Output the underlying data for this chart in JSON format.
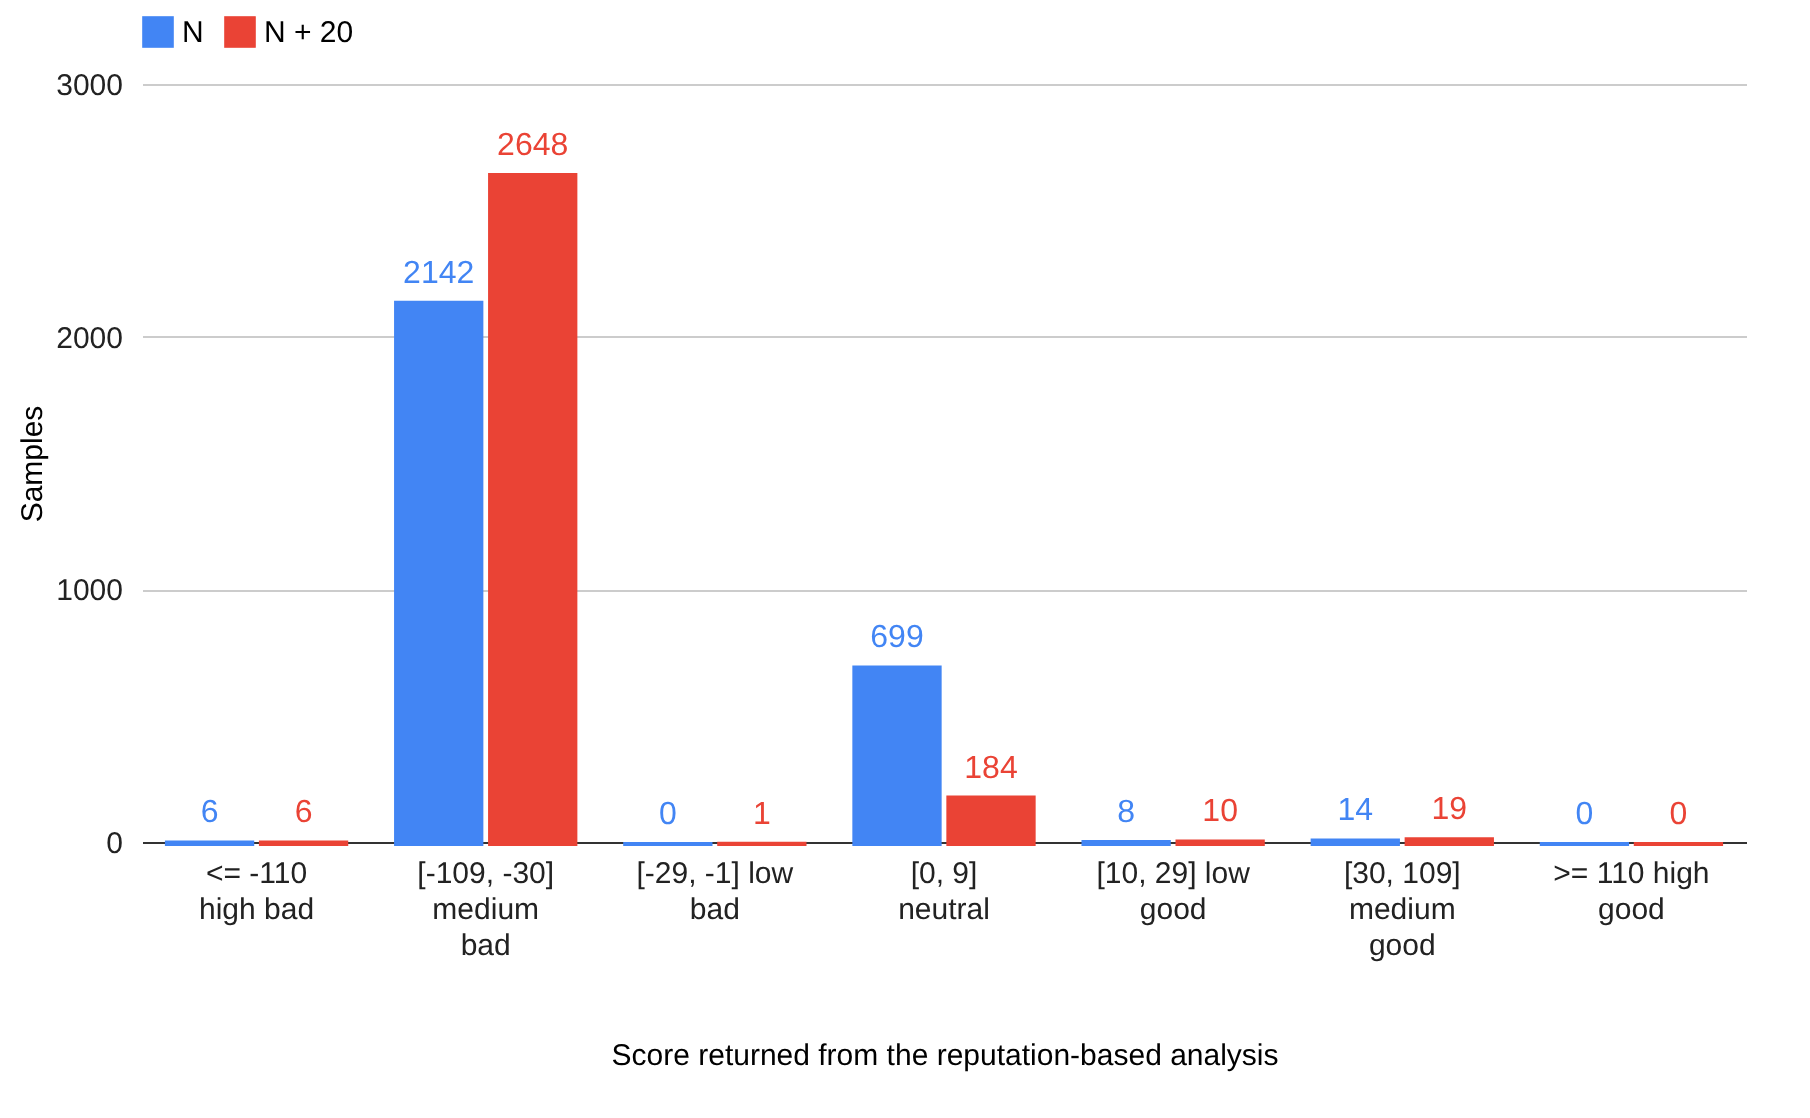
{
  "chart_data": {
    "type": "bar",
    "xlabel": "Score returned from the reputation-based analysis",
    "ylabel": "Samples",
    "categories": [
      "<= -110 high bad",
      "[-109, -30] medium bad",
      "[-29, -1] low bad",
      "[0, 9] neutral",
      "[10, 29] low good",
      "[30, 109] medium good",
      ">= 110 high good"
    ],
    "series": [
      {
        "name": "N",
        "color": "#4285f4",
        "values": [
          6,
          2142,
          0,
          699,
          8,
          14,
          0
        ]
      },
      {
        "name": "N + 20",
        "color": "#ea4335",
        "values": [
          6,
          2648,
          1,
          184,
          10,
          19,
          0
        ]
      }
    ],
    "ylim": [
      0,
      3000
    ],
    "yticks": [
      0,
      1000,
      2000,
      3000
    ],
    "grid": "y",
    "legend": "top",
    "data_labels": true
  }
}
